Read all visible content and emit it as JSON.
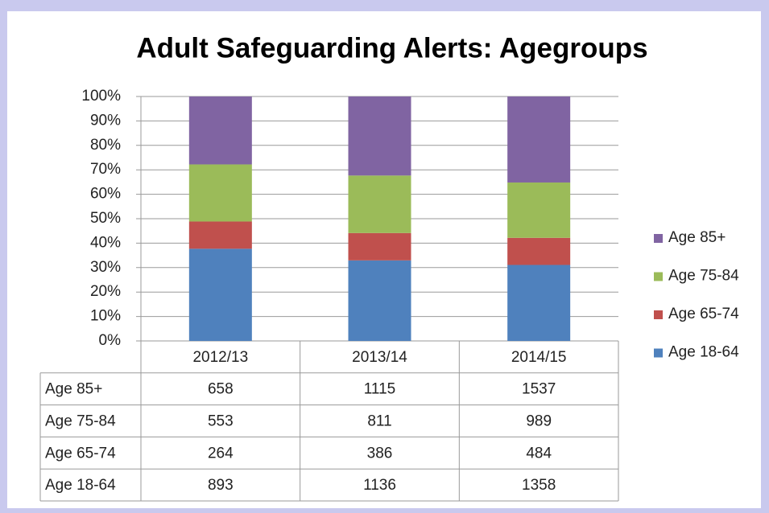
{
  "chart_data": {
    "type": "bar",
    "stacked": "percent",
    "title": "Adult Safeguarding Alerts: Agegroups",
    "categories": [
      "2012/13",
      "2013/14",
      "2014/15"
    ],
    "series": [
      {
        "name": "Age 18-64",
        "color": "#4f81bd",
        "values": [
          893,
          1136,
          1358
        ]
      },
      {
        "name": "Age 65-74",
        "color": "#c0504d",
        "values": [
          264,
          386,
          484
        ]
      },
      {
        "name": "Age 75-84",
        "color": "#9bbb59",
        "values": [
          553,
          811,
          989
        ]
      },
      {
        "name": "Age 85+",
        "color": "#8064a2",
        "values": [
          658,
          1115,
          1537
        ]
      }
    ],
    "ylim": [
      0,
      100
    ],
    "yticks": [
      {
        "value": 0,
        "label": "0%"
      },
      {
        "value": 10,
        "label": "10%"
      },
      {
        "value": 20,
        "label": "20%"
      },
      {
        "value": 30,
        "label": "30%"
      },
      {
        "value": 40,
        "label": "40%"
      },
      {
        "value": 50,
        "label": "50%"
      },
      {
        "value": 60,
        "label": "60%"
      },
      {
        "value": 70,
        "label": "70%"
      },
      {
        "value": 80,
        "label": "80%"
      },
      {
        "value": 90,
        "label": "90%"
      },
      {
        "value": 100,
        "label": "100%"
      }
    ],
    "grid": true,
    "legend": "right",
    "data_table": true
  }
}
